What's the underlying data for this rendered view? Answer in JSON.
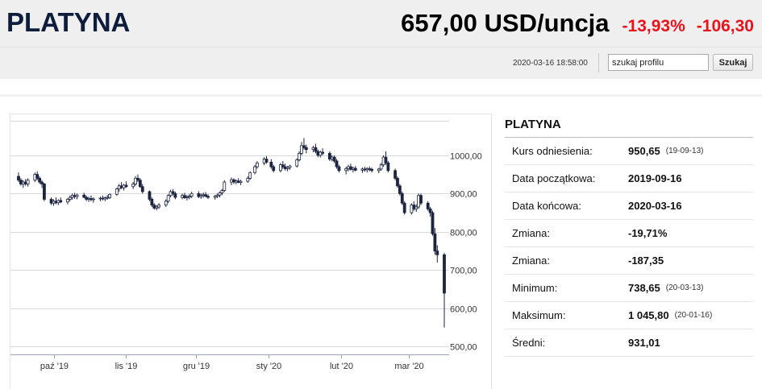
{
  "header": {
    "title": "PLATYNA",
    "price": "657,00 USD/uncja",
    "change_pct": "-13,93%",
    "change_abs": "-106,30",
    "timestamp": "2020-03-16 18:58:00",
    "search_value": "szukaj profilu",
    "search_button": "Szukaj"
  },
  "info": {
    "title": "PLATYNA",
    "rows": [
      {
        "label": "Kurs odniesienia:",
        "value": "950,65",
        "date": "(19-09-13)"
      },
      {
        "label": "Data początkowa:",
        "value": "2019-09-16",
        "date": ""
      },
      {
        "label": "Data końcowa:",
        "value": "2020-03-16",
        "date": ""
      },
      {
        "label": "Zmiana:",
        "value": "-19,71%",
        "date": ""
      },
      {
        "label": "Zmiana:",
        "value": "-187,35",
        "date": ""
      },
      {
        "label": "Minimum:",
        "value": "738,65",
        "date": "(20-03-13)"
      },
      {
        "label": "Maksimum:",
        "value": "1 045,80",
        "date": "(20-01-16)"
      },
      {
        "label": "Średni:",
        "value": "931,01",
        "date": ""
      }
    ]
  },
  "colors": {
    "title": "#0f1d3c",
    "negative": "#e8131b",
    "candle": "#1c2440",
    "grid": "#d8d8d8"
  },
  "chart_data": {
    "type": "candlestick",
    "x_tick_labels": [
      "paź '19",
      "lis '19",
      "gru '19",
      "sty '20",
      "lut '20",
      "mar '20"
    ],
    "y_tick_labels": [
      "1000,00",
      "900,00",
      "800,00",
      "700,00",
      "600,00",
      "500,00"
    ],
    "y_tick_values": [
      1000,
      900,
      800,
      700,
      600,
      500
    ],
    "ylim": [
      480,
      1090
    ],
    "grid": true,
    "x_range": [
      "2019-09-16",
      "2020-03-16"
    ],
    "x_ticks": [
      "2019-10-01",
      "2019-11-01",
      "2019-12-01",
      "2020-01-01",
      "2020-02-01",
      "2020-03-01"
    ],
    "candles": [
      {
        "d": "2019-09-16",
        "o": 945,
        "h": 955,
        "l": 930,
        "c": 935
      },
      {
        "d": "2019-09-17",
        "o": 935,
        "h": 940,
        "l": 920,
        "c": 925
      },
      {
        "d": "2019-09-18",
        "o": 925,
        "h": 935,
        "l": 915,
        "c": 930
      },
      {
        "d": "2019-09-19",
        "o": 930,
        "h": 938,
        "l": 920,
        "c": 925
      },
      {
        "d": "2019-09-20",
        "o": 925,
        "h": 940,
        "l": 918,
        "c": 935
      },
      {
        "d": "2019-09-23",
        "o": 935,
        "h": 955,
        "l": 930,
        "c": 950
      },
      {
        "d": "2019-09-24",
        "o": 950,
        "h": 958,
        "l": 935,
        "c": 940
      },
      {
        "d": "2019-09-25",
        "o": 940,
        "h": 945,
        "l": 925,
        "c": 930
      },
      {
        "d": "2019-09-26",
        "o": 930,
        "h": 935,
        "l": 915,
        "c": 925
      },
      {
        "d": "2019-09-27",
        "o": 925,
        "h": 928,
        "l": 880,
        "c": 885
      },
      {
        "d": "2019-09-30",
        "o": 885,
        "h": 890,
        "l": 870,
        "c": 875
      },
      {
        "d": "2019-10-01",
        "o": 875,
        "h": 885,
        "l": 868,
        "c": 880
      },
      {
        "d": "2019-10-02",
        "o": 880,
        "h": 890,
        "l": 872,
        "c": 876
      },
      {
        "d": "2019-10-03",
        "o": 876,
        "h": 885,
        "l": 870,
        "c": 882
      },
      {
        "d": "2019-10-04",
        "o": 882,
        "h": 890,
        "l": 875,
        "c": 878
      },
      {
        "d": "2019-10-07",
        "o": 878,
        "h": 888,
        "l": 872,
        "c": 885
      },
      {
        "d": "2019-10-08",
        "o": 885,
        "h": 895,
        "l": 880,
        "c": 890
      },
      {
        "d": "2019-10-09",
        "o": 890,
        "h": 900,
        "l": 884,
        "c": 895
      },
      {
        "d": "2019-10-10",
        "o": 895,
        "h": 902,
        "l": 886,
        "c": 892
      },
      {
        "d": "2019-10-11",
        "o": 892,
        "h": 900,
        "l": 885,
        "c": 896
      },
      {
        "d": "2019-10-14",
        "o": 896,
        "h": 902,
        "l": 888,
        "c": 890
      },
      {
        "d": "2019-10-15",
        "o": 890,
        "h": 895,
        "l": 880,
        "c": 885
      },
      {
        "d": "2019-10-16",
        "o": 885,
        "h": 892,
        "l": 878,
        "c": 887
      },
      {
        "d": "2019-10-17",
        "o": 887,
        "h": 895,
        "l": 880,
        "c": 884
      },
      {
        "d": "2019-10-18",
        "o": 884,
        "h": 890,
        "l": 876,
        "c": 886
      },
      {
        "d": "2019-10-21",
        "o": 886,
        "h": 892,
        "l": 880,
        "c": 888
      },
      {
        "d": "2019-10-22",
        "o": 888,
        "h": 895,
        "l": 882,
        "c": 886
      },
      {
        "d": "2019-10-23",
        "o": 886,
        "h": 892,
        "l": 880,
        "c": 889
      },
      {
        "d": "2019-10-24",
        "o": 889,
        "h": 896,
        "l": 884,
        "c": 890
      },
      {
        "d": "2019-10-25",
        "o": 890,
        "h": 900,
        "l": 886,
        "c": 898
      },
      {
        "d": "2019-10-28",
        "o": 898,
        "h": 915,
        "l": 894,
        "c": 912
      },
      {
        "d": "2019-10-29",
        "o": 912,
        "h": 925,
        "l": 905,
        "c": 920
      },
      {
        "d": "2019-10-30",
        "o": 920,
        "h": 930,
        "l": 912,
        "c": 915
      },
      {
        "d": "2019-10-31",
        "o": 915,
        "h": 925,
        "l": 908,
        "c": 922
      },
      {
        "d": "2019-11-01",
        "o": 922,
        "h": 932,
        "l": 915,
        "c": 918
      },
      {
        "d": "2019-11-04",
        "o": 918,
        "h": 930,
        "l": 912,
        "c": 925
      },
      {
        "d": "2019-11-05",
        "o": 925,
        "h": 945,
        "l": 920,
        "c": 940
      },
      {
        "d": "2019-11-06",
        "o": 940,
        "h": 950,
        "l": 930,
        "c": 935
      },
      {
        "d": "2019-11-07",
        "o": 935,
        "h": 940,
        "l": 915,
        "c": 918
      },
      {
        "d": "2019-11-08",
        "o": 918,
        "h": 925,
        "l": 900,
        "c": 905
      },
      {
        "d": "2019-11-11",
        "o": 905,
        "h": 908,
        "l": 880,
        "c": 885
      },
      {
        "d": "2019-11-12",
        "o": 885,
        "h": 890,
        "l": 865,
        "c": 870
      },
      {
        "d": "2019-11-13",
        "o": 870,
        "h": 875,
        "l": 858,
        "c": 862
      },
      {
        "d": "2019-11-14",
        "o": 862,
        "h": 870,
        "l": 856,
        "c": 865
      },
      {
        "d": "2019-11-15",
        "o": 865,
        "h": 875,
        "l": 860,
        "c": 870
      },
      {
        "d": "2019-11-18",
        "o": 870,
        "h": 885,
        "l": 865,
        "c": 880
      },
      {
        "d": "2019-11-19",
        "o": 880,
        "h": 898,
        "l": 875,
        "c": 895
      },
      {
        "d": "2019-11-20",
        "o": 895,
        "h": 910,
        "l": 890,
        "c": 905
      },
      {
        "d": "2019-11-21",
        "o": 905,
        "h": 912,
        "l": 895,
        "c": 900
      },
      {
        "d": "2019-11-22",
        "o": 900,
        "h": 905,
        "l": 885,
        "c": 890
      },
      {
        "d": "2019-11-25",
        "o": 890,
        "h": 900,
        "l": 885,
        "c": 895
      },
      {
        "d": "2019-11-26",
        "o": 895,
        "h": 902,
        "l": 886,
        "c": 889
      },
      {
        "d": "2019-11-27",
        "o": 889,
        "h": 896,
        "l": 882,
        "c": 891
      },
      {
        "d": "2019-11-28",
        "o": 891,
        "h": 898,
        "l": 885,
        "c": 893
      },
      {
        "d": "2019-11-29",
        "o": 893,
        "h": 905,
        "l": 888,
        "c": 900
      },
      {
        "d": "2019-12-02",
        "o": 900,
        "h": 906,
        "l": 888,
        "c": 892
      },
      {
        "d": "2019-12-03",
        "o": 892,
        "h": 900,
        "l": 886,
        "c": 895
      },
      {
        "d": "2019-12-04",
        "o": 895,
        "h": 903,
        "l": 889,
        "c": 897
      },
      {
        "d": "2019-12-05",
        "o": 897,
        "h": 904,
        "l": 890,
        "c": 893
      },
      {
        "d": "2019-12-06",
        "o": 893,
        "h": 898,
        "l": 886,
        "c": 890
      },
      {
        "d": "2019-12-09",
        "o": 890,
        "h": 896,
        "l": 884,
        "c": 893
      },
      {
        "d": "2019-12-10",
        "o": 893,
        "h": 900,
        "l": 888,
        "c": 896
      },
      {
        "d": "2019-12-11",
        "o": 896,
        "h": 905,
        "l": 890,
        "c": 902
      },
      {
        "d": "2019-12-12",
        "o": 902,
        "h": 912,
        "l": 896,
        "c": 908
      },
      {
        "d": "2019-12-13",
        "o": 908,
        "h": 935,
        "l": 904,
        "c": 930
      },
      {
        "d": "2019-12-16",
        "o": 930,
        "h": 942,
        "l": 922,
        "c": 936
      },
      {
        "d": "2019-12-17",
        "o": 936,
        "h": 940,
        "l": 925,
        "c": 930
      },
      {
        "d": "2019-12-18",
        "o": 930,
        "h": 937,
        "l": 924,
        "c": 933
      },
      {
        "d": "2019-12-19",
        "o": 933,
        "h": 940,
        "l": 927,
        "c": 929
      },
      {
        "d": "2019-12-20",
        "o": 929,
        "h": 936,
        "l": 922,
        "c": 932
      },
      {
        "d": "2019-12-23",
        "o": 932,
        "h": 945,
        "l": 928,
        "c": 940
      },
      {
        "d": "2019-12-24",
        "o": 940,
        "h": 958,
        "l": 936,
        "c": 955
      },
      {
        "d": "2019-12-26",
        "o": 955,
        "h": 975,
        "l": 950,
        "c": 970
      },
      {
        "d": "2019-12-27",
        "o": 970,
        "h": 985,
        "l": 965,
        "c": 980
      },
      {
        "d": "2019-12-30",
        "o": 980,
        "h": 995,
        "l": 974,
        "c": 990
      },
      {
        "d": "2019-12-31",
        "o": 990,
        "h": 998,
        "l": 978,
        "c": 982
      },
      {
        "d": "2020-01-02",
        "o": 982,
        "h": 990,
        "l": 965,
        "c": 970
      },
      {
        "d": "2020-01-03",
        "o": 970,
        "h": 975,
        "l": 955,
        "c": 960
      },
      {
        "d": "2020-01-06",
        "o": 960,
        "h": 980,
        "l": 955,
        "c": 975
      },
      {
        "d": "2020-01-07",
        "o": 975,
        "h": 985,
        "l": 965,
        "c": 970
      },
      {
        "d": "2020-01-08",
        "o": 970,
        "h": 978,
        "l": 960,
        "c": 965
      },
      {
        "d": "2020-01-09",
        "o": 965,
        "h": 972,
        "l": 958,
        "c": 968
      },
      {
        "d": "2020-01-10",
        "o": 968,
        "h": 975,
        "l": 962,
        "c": 972
      },
      {
        "d": "2020-01-13",
        "o": 972,
        "h": 992,
        "l": 968,
        "c": 988
      },
      {
        "d": "2020-01-14",
        "o": 988,
        "h": 1010,
        "l": 984,
        "c": 1005
      },
      {
        "d": "2020-01-15",
        "o": 1005,
        "h": 1035,
        "l": 1000,
        "c": 1025
      },
      {
        "d": "2020-01-16",
        "o": 1025,
        "h": 1045,
        "l": 1015,
        "c": 1020
      },
      {
        "d": "2020-01-17",
        "o": 1020,
        "h": 1028,
        "l": 1005,
        "c": 1015
      },
      {
        "d": "2020-01-20",
        "o": 1015,
        "h": 1025,
        "l": 1008,
        "c": 1020
      },
      {
        "d": "2020-01-21",
        "o": 1020,
        "h": 1030,
        "l": 1005,
        "c": 1010
      },
      {
        "d": "2020-01-22",
        "o": 1010,
        "h": 1015,
        "l": 995,
        "c": 1000
      },
      {
        "d": "2020-01-23",
        "o": 1000,
        "h": 1012,
        "l": 994,
        "c": 1008
      },
      {
        "d": "2020-01-24",
        "o": 1008,
        "h": 1018,
        "l": 1000,
        "c": 1005
      },
      {
        "d": "2020-01-27",
        "o": 1005,
        "h": 1010,
        "l": 985,
        "c": 990
      },
      {
        "d": "2020-01-28",
        "o": 990,
        "h": 1000,
        "l": 984,
        "c": 995
      },
      {
        "d": "2020-01-29",
        "o": 995,
        "h": 1000,
        "l": 980,
        "c": 985
      },
      {
        "d": "2020-01-30",
        "o": 985,
        "h": 990,
        "l": 965,
        "c": 970
      },
      {
        "d": "2020-01-31",
        "o": 970,
        "h": 975,
        "l": 955,
        "c": 960
      },
      {
        "d": "2020-02-03",
        "o": 960,
        "h": 970,
        "l": 950,
        "c": 965
      },
      {
        "d": "2020-02-04",
        "o": 965,
        "h": 975,
        "l": 958,
        "c": 970
      },
      {
        "d": "2020-02-05",
        "o": 970,
        "h": 978,
        "l": 960,
        "c": 963
      },
      {
        "d": "2020-02-06",
        "o": 963,
        "h": 970,
        "l": 955,
        "c": 966
      },
      {
        "d": "2020-02-07",
        "o": 966,
        "h": 972,
        "l": 958,
        "c": 961
      },
      {
        "d": "2020-02-10",
        "o": 961,
        "h": 968,
        "l": 954,
        "c": 964
      },
      {
        "d": "2020-02-11",
        "o": 964,
        "h": 970,
        "l": 957,
        "c": 962
      },
      {
        "d": "2020-02-12",
        "o": 962,
        "h": 969,
        "l": 955,
        "c": 965
      },
      {
        "d": "2020-02-13",
        "o": 965,
        "h": 971,
        "l": 958,
        "c": 963
      },
      {
        "d": "2020-02-14",
        "o": 963,
        "h": 968,
        "l": 955,
        "c": 960
      },
      {
        "d": "2020-02-17",
        "o": 960,
        "h": 967,
        "l": 953,
        "c": 964
      },
      {
        "d": "2020-02-18",
        "o": 964,
        "h": 980,
        "l": 960,
        "c": 975
      },
      {
        "d": "2020-02-19",
        "o": 975,
        "h": 1000,
        "l": 970,
        "c": 995
      },
      {
        "d": "2020-02-20",
        "o": 995,
        "h": 1010,
        "l": 975,
        "c": 980
      },
      {
        "d": "2020-02-21",
        "o": 980,
        "h": 985,
        "l": 955,
        "c": 960
      },
      {
        "d": "2020-02-24",
        "o": 960,
        "h": 965,
        "l": 935,
        "c": 940
      },
      {
        "d": "2020-02-25",
        "o": 940,
        "h": 945,
        "l": 915,
        "c": 920
      },
      {
        "d": "2020-02-26",
        "o": 920,
        "h": 925,
        "l": 895,
        "c": 900
      },
      {
        "d": "2020-02-27",
        "o": 900,
        "h": 905,
        "l": 870,
        "c": 875
      },
      {
        "d": "2020-02-28",
        "o": 875,
        "h": 880,
        "l": 845,
        "c": 850
      },
      {
        "d": "2020-03-02",
        "o": 850,
        "h": 875,
        "l": 845,
        "c": 870
      },
      {
        "d": "2020-03-03",
        "o": 870,
        "h": 880,
        "l": 855,
        "c": 860
      },
      {
        "d": "2020-03-04",
        "o": 860,
        "h": 872,
        "l": 852,
        "c": 865
      },
      {
        "d": "2020-03-05",
        "o": 865,
        "h": 900,
        "l": 860,
        "c": 895
      },
      {
        "d": "2020-03-06",
        "o": 895,
        "h": 900,
        "l": 870,
        "c": 875
      },
      {
        "d": "2020-03-09",
        "o": 875,
        "h": 880,
        "l": 855,
        "c": 860
      },
      {
        "d": "2020-03-10",
        "o": 860,
        "h": 865,
        "l": 840,
        "c": 850
      },
      {
        "d": "2020-03-11",
        "o": 850,
        "h": 855,
        "l": 790,
        "c": 795
      },
      {
        "d": "2020-03-12",
        "o": 795,
        "h": 810,
        "l": 740,
        "c": 750
      },
      {
        "d": "2020-03-13",
        "o": 750,
        "h": 765,
        "l": 720,
        "c": 740
      },
      {
        "d": "2020-03-16",
        "o": 740,
        "h": 745,
        "l": 550,
        "c": 640
      }
    ]
  }
}
